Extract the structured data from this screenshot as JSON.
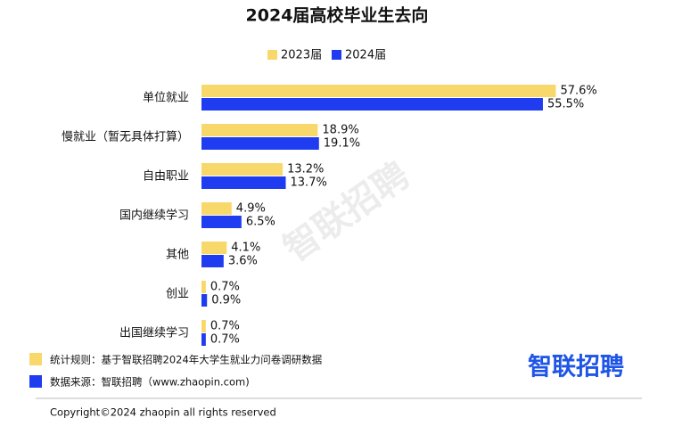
{
  "chart_data": {
    "type": "bar",
    "orientation": "horizontal",
    "title": "2024届高校毕业生去向",
    "categories": [
      "单位就业",
      "慢就业（暂无具体打算）",
      "自由职业",
      "国内继续学习",
      "其他",
      "创业",
      "出国继续学习"
    ],
    "series": [
      {
        "name": "2023届",
        "color": "#f9d86b",
        "values": [
          57.6,
          18.9,
          13.2,
          4.9,
          4.1,
          0.7,
          0.7
        ],
        "value_labels": [
          "57.6%",
          "18.9%",
          "13.2%",
          "4.9%",
          "4.1%",
          "0.7%",
          "0.7%"
        ]
      },
      {
        "name": "2024届",
        "color": "#1f3cf0",
        "values": [
          55.5,
          19.1,
          13.7,
          6.5,
          3.6,
          0.9,
          0.7
        ],
        "value_labels": [
          "55.5%",
          "19.1%",
          "13.7%",
          "6.5%",
          "3.6%",
          "0.9%",
          "0.7%"
        ]
      }
    ],
    "legend": "top"
  },
  "watermark": "智联招聘",
  "notes": [
    "统计规则：基于智联招聘2024年大学生就业力问卷调研数据",
    "数据来源：智联招聘（www.zhaopin.com)"
  ],
  "logo": "智联招聘",
  "copyright": "Copyright©2024 zhaopin all rights reserved"
}
